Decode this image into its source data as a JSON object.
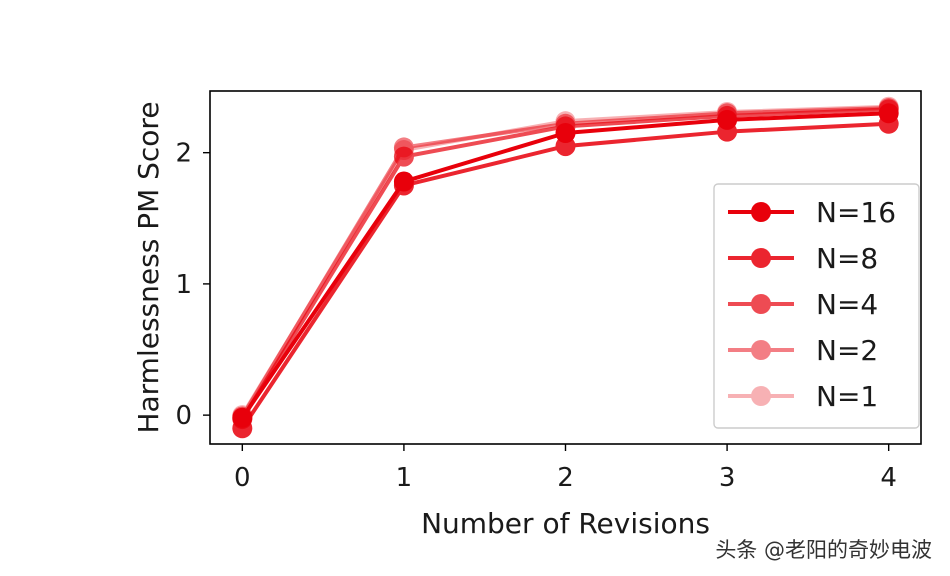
{
  "chart_data": {
    "type": "line",
    "xlabel": "Number of Revisions",
    "ylabel": "Harmlessness PM Score",
    "x": [
      0,
      1,
      2,
      3,
      4
    ],
    "xticks": [
      "0",
      "1",
      "2",
      "3",
      "4"
    ],
    "yticks": [
      "0",
      "1",
      "2"
    ],
    "xlim": [
      -0.2,
      4.2
    ],
    "ylim": [
      -0.22,
      2.47
    ],
    "legend_position": "right",
    "series": [
      {
        "name": "N=16",
        "values": [
          -0.02,
          1.78,
          2.15,
          2.25,
          2.3
        ],
        "color": "#e8000b",
        "opacity": 1.0
      },
      {
        "name": "N=8",
        "values": [
          -0.1,
          1.75,
          2.05,
          2.16,
          2.22
        ],
        "color": "#e8000b",
        "opacity": 0.85
      },
      {
        "name": "N=4",
        "values": [
          -0.03,
          1.97,
          2.2,
          2.28,
          2.33
        ],
        "color": "#e8000b",
        "opacity": 0.7
      },
      {
        "name": "N=2",
        "values": [
          -0.01,
          2.04,
          2.22,
          2.3,
          2.34
        ],
        "color": "#e8000b",
        "opacity": 0.5
      },
      {
        "name": "N=1",
        "values": [
          0.0,
          2.02,
          2.24,
          2.31,
          2.35
        ],
        "color": "#e8000b",
        "opacity": 0.3
      }
    ]
  },
  "watermark": "头条 @老阳的奇妙电波"
}
